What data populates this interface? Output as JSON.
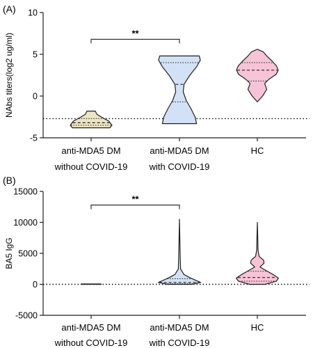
{
  "colors": {
    "without_covid": "#ece4c3",
    "with_covid": "#d2e1f5",
    "hc": "#f7c3d6",
    "stroke": "#1f1f1f",
    "baseline": "#000000"
  },
  "chart_data": [
    {
      "type": "violin",
      "panel_label": "(A)",
      "ylabel": "NAbs titers(log2 ug/ml)",
      "ylim": [
        -5,
        10
      ],
      "yticks": [
        -5,
        0,
        5,
        10
      ],
      "categories": [
        [
          "anti-MDA5 DM",
          "without COVID-19"
        ],
        [
          "anti-MDA5 DM",
          "with COVID-19"
        ],
        [
          "HC"
        ]
      ],
      "reference_line": -2.7,
      "significance": {
        "from": 0,
        "to": 1,
        "label": "**",
        "y": 6.8
      },
      "violins": [
        {
          "min": -3.8,
          "max": -1.8,
          "median": -3.2,
          "q1": -3.5,
          "q3": -2.7,
          "color_key": "without_covid",
          "profile": [
            [
              -3.8,
              0.9
            ],
            [
              -3.5,
              1.0
            ],
            [
              -3.0,
              0.85
            ],
            [
              -2.6,
              0.55
            ],
            [
              -2.2,
              0.28
            ],
            [
              -1.8,
              0.2
            ]
          ]
        },
        {
          "min": -3.3,
          "max": 4.8,
          "median": 1.4,
          "q1": -0.7,
          "q3": 4.0,
          "color_key": "with_covid",
          "profile": [
            [
              -3.3,
              0.82
            ],
            [
              -2.5,
              0.75
            ],
            [
              -1.5,
              0.55
            ],
            [
              -0.5,
              0.32
            ],
            [
              0.5,
              0.18
            ],
            [
              1.4,
              0.22
            ],
            [
              2.5,
              0.5
            ],
            [
              3.5,
              0.82
            ],
            [
              4.3,
              1.0
            ],
            [
              4.8,
              0.95
            ]
          ]
        },
        {
          "min": -0.7,
          "max": 5.6,
          "median": 3.1,
          "q1": 1.8,
          "q3": 4.0,
          "color_key": "hc",
          "profile": [
            [
              -0.7,
              0.0
            ],
            [
              0.0,
              0.25
            ],
            [
              0.8,
              0.45
            ],
            [
              1.5,
              0.35
            ],
            [
              2.0,
              0.55
            ],
            [
              2.6,
              0.9
            ],
            [
              3.1,
              1.0
            ],
            [
              3.6,
              0.92
            ],
            [
              4.2,
              0.7
            ],
            [
              4.8,
              0.45
            ],
            [
              5.3,
              0.28
            ],
            [
              5.6,
              0.0
            ]
          ]
        }
      ]
    },
    {
      "type": "violin",
      "panel_label": "(B)",
      "ylabel": "BA5 IgG",
      "ylim": [
        -5000,
        15000
      ],
      "yticks": [
        -5000,
        0,
        5000,
        10000,
        15000
      ],
      "categories": [
        [
          "anti-MDA5 DM",
          "without COVID-19"
        ],
        [
          "anti-MDA5 DM",
          "with COVID-19"
        ],
        [
          "HC"
        ]
      ],
      "reference_line": 0,
      "significance": {
        "from": 0,
        "to": 1,
        "label": "**",
        "y": 12800
      },
      "violins": [
        {
          "min": 0,
          "max": 60,
          "median": 25,
          "q1": 10,
          "q3": 40,
          "color_key": "without_covid",
          "profile": [
            [
              0,
              0.45
            ],
            [
              30,
              0.45
            ],
            [
              60,
              0.45
            ]
          ]
        },
        {
          "min": 0,
          "max": 10500,
          "median": 300,
          "q1": 100,
          "q3": 900,
          "color_key": "with_covid",
          "profile": [
            [
              0,
              0.55
            ],
            [
              300,
              0.95
            ],
            [
              700,
              0.7
            ],
            [
              1100,
              0.45
            ],
            [
              1600,
              0.2
            ],
            [
              2500,
              0.05
            ],
            [
              5000,
              0.03
            ],
            [
              10500,
              0.0
            ]
          ]
        },
        {
          "min": 0,
          "max": 10000,
          "median": 1100,
          "q1": 500,
          "q3": 2100,
          "color_key": "hc",
          "profile": [
            [
              0,
              0.35
            ],
            [
              500,
              0.85
            ],
            [
              1000,
              0.95
            ],
            [
              1600,
              0.7
            ],
            [
              2200,
              0.4
            ],
            [
              2800,
              0.12
            ],
            [
              3400,
              0.3
            ],
            [
              3900,
              0.28
            ],
            [
              4500,
              0.08
            ],
            [
              5500,
              0.03
            ],
            [
              7500,
              0.02
            ],
            [
              10000,
              0.0
            ]
          ]
        }
      ]
    }
  ]
}
